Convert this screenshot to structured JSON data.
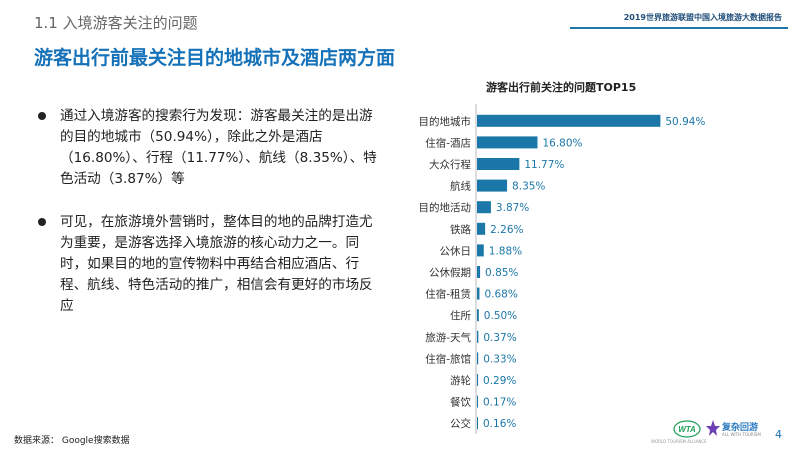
{
  "header": {
    "section_title": "1.1 入境游客关注的问题",
    "report_name": "2019世界旅游联盟中国入境旅游大数据报告"
  },
  "headline": "游客出行前最关注目的地城市及酒店两方面",
  "bullets": [
    "通过入境游客的搜索行为发现：游客最关注的是出游的目的地城市（50.94%），除此之外是酒店（16.80%）、行程（11.77%）、航线（8.35%）、特色活动（3.87%）等",
    "可见，在旅游境外营销时，整体目的地的品牌打造尤为重要，是游客选择入境旅游的核心动力之一。同时，如果目的地的宣传物料中再结合相应酒店、行程、航线、特色活动的推广，相信会有更好的市场反应"
  ],
  "chart_data": {
    "type": "bar",
    "orientation": "horizontal",
    "title": "游客出行前关注的问题TOP15",
    "categories": [
      "目的地城市",
      "住宿-酒店",
      "大众行程",
      "航线",
      "目的地活动",
      "铁路",
      "公休日",
      "公休假期",
      "住宿-租赁",
      "住所",
      "旅游-天气",
      "住宿-旅馆",
      "游轮",
      "餐饮",
      "公交"
    ],
    "values": [
      50.94,
      16.8,
      11.77,
      8.35,
      3.87,
      2.26,
      1.88,
      0.85,
      0.68,
      0.5,
      0.37,
      0.33,
      0.29,
      0.17,
      0.16
    ],
    "value_labels": [
      "50.94%",
      "16.80%",
      "11.77%",
      "8.35%",
      "3.87%",
      "2.26%",
      "1.88%",
      "0.85%",
      "0.68%",
      "0.50%",
      "0.37%",
      "0.33%",
      "0.29%",
      "0.17%",
      "0.16%"
    ],
    "xlim": [
      0,
      60
    ],
    "grid": false,
    "bar_color": "#1b77a8",
    "label_color": "#1b77a8"
  },
  "footer": {
    "source": "数据来源： Google搜索数据",
    "page_number": "4",
    "logo_wta_text": "WORLD TOURISM ALLIANCE",
    "brand_name": "复杂回游",
    "brand_sub": "ALL WITH TOURISM"
  }
}
